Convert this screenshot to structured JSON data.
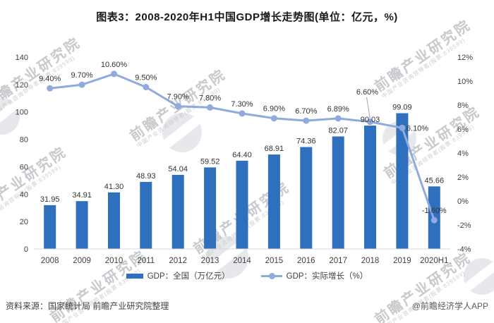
{
  "title": "图表3：2008-2020年H1中国GDP增长走势图(单位：亿元，%)",
  "chart_data": {
    "type": "bar+line",
    "title": "图表3：2008-2020年H1中国GDP增长走势图(单位：亿元，%)",
    "categories": [
      "2008",
      "2009",
      "2010",
      "2011",
      "2012",
      "2013",
      "2014",
      "2015",
      "2016",
      "2017",
      "2018",
      "2019",
      "2020H1"
    ],
    "series": [
      {
        "name": "GDP：全国（万亿元）",
        "type": "bar",
        "axis": "left",
        "color": "#2e6fbe",
        "values": [
          31.95,
          34.91,
          41.3,
          48.93,
          54.04,
          59.52,
          64.4,
          68.91,
          74.36,
          82.07,
          90.03,
          99.09,
          45.66
        ],
        "labels": [
          "31.95",
          "34.91",
          "41.30",
          "48.93",
          "54.04",
          "59.52",
          "64.40",
          "68.91",
          "74.36",
          "82.07",
          "90.03",
          "99.09",
          "45.66"
        ]
      },
      {
        "name": "GDP：实际增长（%）",
        "type": "line",
        "axis": "right",
        "color": "#8faadc",
        "values": [
          9.4,
          9.7,
          10.6,
          9.5,
          7.9,
          7.8,
          7.3,
          6.9,
          6.7,
          6.89,
          6.6,
          6.1,
          -1.6
        ],
        "labels": [
          "9.40%",
          "9.70%",
          "10.60%",
          "9.50%",
          "7.90%",
          "7.80%",
          "7.30%",
          "6.90%",
          "6.70%",
          "6.89%",
          "6.60%",
          "6.10%",
          "-1.60%"
        ]
      }
    ],
    "left_axis": {
      "min": 0,
      "max": 140,
      "tick_labels": [
        "0",
        "20",
        "40",
        "60",
        "80",
        "100",
        "120",
        "140"
      ]
    },
    "right_axis": {
      "min": -4,
      "max": 12,
      "tick_labels": [
        "-4%",
        "-2%",
        "0%",
        "2%",
        "4%",
        "6%",
        "8%",
        "10%",
        "12%"
      ]
    },
    "grid": false,
    "legend_position": "bottom",
    "label_overrides": {
      "10": "callout",
      "11": "right"
    }
  },
  "footer": {
    "source": "资料来源：国家统计局 前瞻产业研究院整理",
    "credit": "@前瞻经济学人APP"
  },
  "watermark": {
    "text": "前瞻产业研究院",
    "subtext": "中国产业咨询领导者(股票:839599)"
  },
  "colors": {
    "bar": "#2e6fbe",
    "line": "#8faadc",
    "axis_line": "#d9d9d9",
    "tick_text": "#404040",
    "data_label": "#333333",
    "leader_line": "#a6a6a6"
  }
}
